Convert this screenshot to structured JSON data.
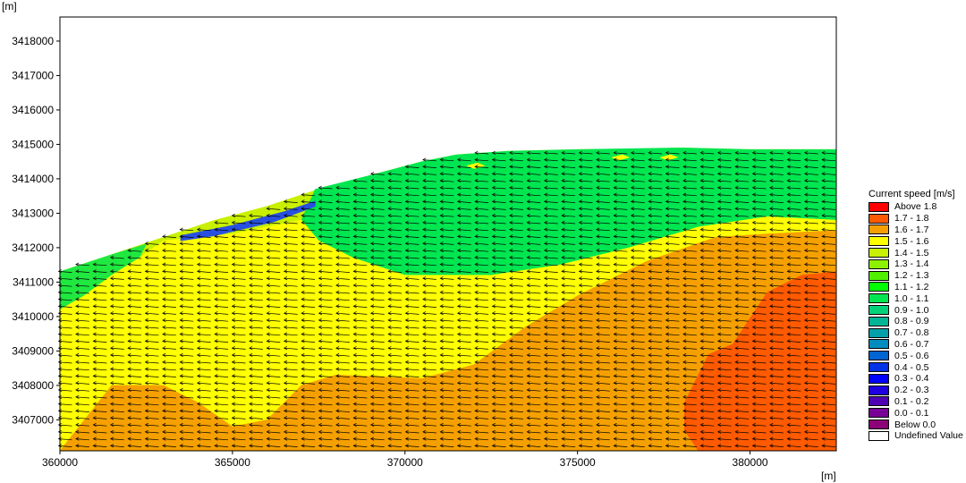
{
  "chart_data": {
    "type": "heatmap",
    "title": "",
    "xlabel": "[m]",
    "ylabel": "[m]",
    "xlim": [
      360000,
      382500
    ],
    "ylim": [
      3406100,
      3418700
    ],
    "xticks": [
      "360000",
      "365000",
      "370000",
      "375000",
      "380000"
    ],
    "yticks": [
      "3418000",
      "3417000",
      "3416000",
      "3415000",
      "3414000",
      "3413000",
      "3412000",
      "3411000",
      "3410000",
      "3409000",
      "3408000",
      "3407000"
    ],
    "x_tick_values": [
      360000,
      365000,
      370000,
      375000,
      380000
    ],
    "y_tick_values": [
      3418000,
      3417000,
      3416000,
      3415000,
      3414000,
      3413000,
      3412000,
      3411000,
      3410000,
      3409000,
      3408000,
      3407000
    ],
    "grid": false,
    "legend_position": "right",
    "vector_direction": "west",
    "legend": {
      "title": "Current speed [m/s]",
      "items": [
        {
          "label": "Above 1.8",
          "color": "#ff0000"
        },
        {
          "label": "1.7 - 1.8",
          "color": "#ff5a00"
        },
        {
          "label": "1.6 - 1.7",
          "color": "#f5a000"
        },
        {
          "label": "1.5 - 1.6",
          "color": "#ffff00"
        },
        {
          "label": "1.4 - 1.5",
          "color": "#c8f000"
        },
        {
          "label": "1.3 - 1.4",
          "color": "#8cf000"
        },
        {
          "label": "1.2 - 1.3",
          "color": "#50f000"
        },
        {
          "label": "1.1 - 1.2",
          "color": "#00ff00"
        },
        {
          "label": "1.0 - 1.1",
          "color": "#00e650"
        },
        {
          "label": "0.9 - 1.0",
          "color": "#00d278"
        },
        {
          "label": "0.8 - 0.9",
          "color": "#00b496"
        },
        {
          "label": "0.7 - 0.8",
          "color": "#00a0aa"
        },
        {
          "label": "0.6 - 0.7",
          "color": "#008cbe"
        },
        {
          "label": "0.5 - 0.6",
          "color": "#0064d2"
        },
        {
          "label": "0.4 - 0.5",
          "color": "#0032e6"
        },
        {
          "label": "0.3 - 0.4",
          "color": "#0000ff"
        },
        {
          "label": "0.2 - 0.3",
          "color": "#1e00e1"
        },
        {
          "label": "0.1 - 0.2",
          "color": "#5000b4"
        },
        {
          "label": "0.0 - 0.1",
          "color": "#780096"
        },
        {
          "label": "Below 0.0",
          "color": "#8c0078"
        },
        {
          "label": "Undefined Value",
          "color": "#ffffff"
        }
      ]
    },
    "regions": [
      {
        "name": "domain",
        "speed_class": "1.4 - 1.5",
        "color": "#c8f000",
        "polygon": [
          [
            360000,
            3411300
          ],
          [
            361500,
            3411800
          ],
          [
            363000,
            3412300
          ],
          [
            364500,
            3412800
          ],
          [
            366000,
            3413200
          ],
          [
            367500,
            3413700
          ],
          [
            369000,
            3414100
          ],
          [
            370500,
            3414500
          ],
          [
            371500,
            3414700
          ],
          [
            373000,
            3414800
          ],
          [
            375000,
            3414850
          ],
          [
            377000,
            3414870
          ],
          [
            378000,
            3414900
          ],
          [
            380000,
            3414850
          ],
          [
            382500,
            3414850
          ],
          [
            382500,
            3406100
          ],
          [
            360000,
            3406100
          ]
        ]
      },
      {
        "name": "green-nearshore-band",
        "speed_class": "1.0 - 1.1",
        "color": "#00e650",
        "polygon": [
          [
            367400,
            3413700
          ],
          [
            369000,
            3414100
          ],
          [
            370500,
            3414500
          ],
          [
            371500,
            3414700
          ],
          [
            373000,
            3414800
          ],
          [
            375000,
            3414850
          ],
          [
            378000,
            3414900
          ],
          [
            380000,
            3414850
          ],
          [
            382500,
            3414850
          ],
          [
            382500,
            3412800
          ],
          [
            380500,
            3412900
          ],
          [
            378500,
            3412600
          ],
          [
            376500,
            3412000
          ],
          [
            374500,
            3411500
          ],
          [
            372500,
            3411200
          ],
          [
            370000,
            3411200
          ],
          [
            368500,
            3411700
          ],
          [
            367500,
            3412200
          ],
          [
            367000,
            3412800
          ]
        ]
      },
      {
        "name": "green-west-patch",
        "speed_class": "1.1 - 1.2",
        "color": "#20e840",
        "polygon": [
          [
            360000,
            3411300
          ],
          [
            361500,
            3411800
          ],
          [
            362500,
            3412100
          ],
          [
            362300,
            3411700
          ],
          [
            361500,
            3411200
          ],
          [
            360700,
            3410600
          ],
          [
            360000,
            3410200
          ]
        ]
      },
      {
        "name": "yellow-main",
        "speed_class": "1.5 - 1.6",
        "color": "#ffff00",
        "polygon": [
          [
            360000,
            3410200
          ],
          [
            360700,
            3410600
          ],
          [
            361500,
            3411200
          ],
          [
            362300,
            3411700
          ],
          [
            363000,
            3412200
          ],
          [
            365000,
            3412400
          ],
          [
            367000,
            3412800
          ],
          [
            367500,
            3412200
          ],
          [
            368500,
            3411700
          ],
          [
            370000,
            3411200
          ],
          [
            372500,
            3411200
          ],
          [
            374500,
            3411500
          ],
          [
            376500,
            3412000
          ],
          [
            378500,
            3412600
          ],
          [
            380500,
            3412900
          ],
          [
            382500,
            3412800
          ],
          [
            382500,
            3412500
          ],
          [
            380500,
            3412400
          ],
          [
            379000,
            3412300
          ],
          [
            377000,
            3411600
          ],
          [
            375000,
            3410600
          ],
          [
            373500,
            3409700
          ],
          [
            372000,
            3408600
          ],
          [
            370500,
            3408200
          ],
          [
            368000,
            3408300
          ],
          [
            367000,
            3408000
          ],
          [
            366000,
            3407000
          ],
          [
            365000,
            3406800
          ],
          [
            364000,
            3407500
          ],
          [
            363000,
            3408000
          ],
          [
            361500,
            3408000
          ],
          [
            360000,
            3406100
          ]
        ]
      },
      {
        "name": "orange-zone",
        "speed_class": "1.6 - 1.7",
        "color": "#f5a000",
        "polygon": [
          [
            360000,
            3406100
          ],
          [
            361500,
            3408000
          ],
          [
            363000,
            3408000
          ],
          [
            364000,
            3407500
          ],
          [
            365000,
            3406800
          ],
          [
            366000,
            3407000
          ],
          [
            367000,
            3408000
          ],
          [
            368000,
            3408300
          ],
          [
            370500,
            3408200
          ],
          [
            372000,
            3408600
          ],
          [
            373500,
            3409700
          ],
          [
            375000,
            3410600
          ],
          [
            377000,
            3411600
          ],
          [
            379000,
            3412300
          ],
          [
            380500,
            3412400
          ],
          [
            382500,
            3412500
          ],
          [
            382500,
            3406100
          ]
        ]
      },
      {
        "name": "red-orange-zone",
        "speed_class": "1.7 - 1.8",
        "color": "#ff5a00",
        "polygon": [
          [
            382500,
            3411300
          ],
          [
            381500,
            3411200
          ],
          [
            380500,
            3410700
          ],
          [
            379500,
            3409200
          ],
          [
            378800,
            3408900
          ],
          [
            378100,
            3407500
          ],
          [
            378100,
            3406700
          ],
          [
            378500,
            3406100
          ],
          [
            382500,
            3406100
          ]
        ]
      },
      {
        "name": "shallow-low-speed",
        "speed_class": "0.4 - 0.5",
        "color": "#2850e0",
        "polygon": [
          [
            363500,
            3412350
          ],
          [
            365000,
            3412650
          ],
          [
            366500,
            3413050
          ],
          [
            367400,
            3413350
          ],
          [
            367400,
            3413200
          ],
          [
            366200,
            3412750
          ],
          [
            364500,
            3412350
          ],
          [
            363500,
            3412200
          ]
        ]
      },
      {
        "name": "hotspot-east",
        "speed_class": "1.5 - 1.6",
        "color": "#ffff00",
        "polygon": [
          [
            376000,
            3414620
          ],
          [
            376300,
            3414700
          ],
          [
            376500,
            3414620
          ],
          [
            376200,
            3414540
          ]
        ]
      },
      {
        "name": "hotspot-east-2",
        "speed_class": "1.5 - 1.6",
        "color": "#ffff00",
        "polygon": [
          [
            377400,
            3414620
          ],
          [
            377700,
            3414700
          ],
          [
            377900,
            3414620
          ],
          [
            377600,
            3414540
          ]
        ]
      },
      {
        "name": "hotspot-mid",
        "speed_class": "1.5 - 1.6",
        "color": "#ffff00",
        "polygon": [
          [
            371800,
            3414380
          ],
          [
            372100,
            3414460
          ],
          [
            372300,
            3414380
          ],
          [
            372000,
            3414300
          ]
        ]
      }
    ]
  }
}
